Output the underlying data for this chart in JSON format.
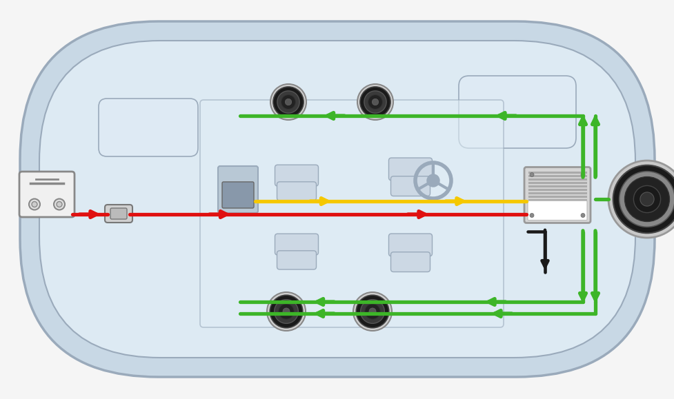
{
  "bg_color": "#f5f5f5",
  "car_outer_color": "#c8d8e5",
  "car_outer_edge": "#9aaabb",
  "car_inner_color": "#ddeaf3",
  "car_inner_edge": "#9aaabb",
  "cabin_color": "#e8f2f8",
  "green": "#3db528",
  "red": "#e01010",
  "yellow": "#f5c800",
  "black": "#1a1a1a",
  "wire_lw": 3.8,
  "arrow_scale": 16,
  "spk_colors": [
    "#1a1a1a",
    "#3a3a3a",
    "#555555",
    "#888888",
    "#bbbbbb"
  ],
  "amp_gray": "#cccccc",
  "amp_stripe": "#aaaaaa",
  "sub_colors": [
    "#111111",
    "#2a2a2a",
    "#444444",
    "#777777",
    "#cccccc"
  ],
  "bat_color": "#f0f0f0",
  "bat_edge": "#888888",
  "fuse_color": "#d0d0d0",
  "fuse_edge": "#777777"
}
